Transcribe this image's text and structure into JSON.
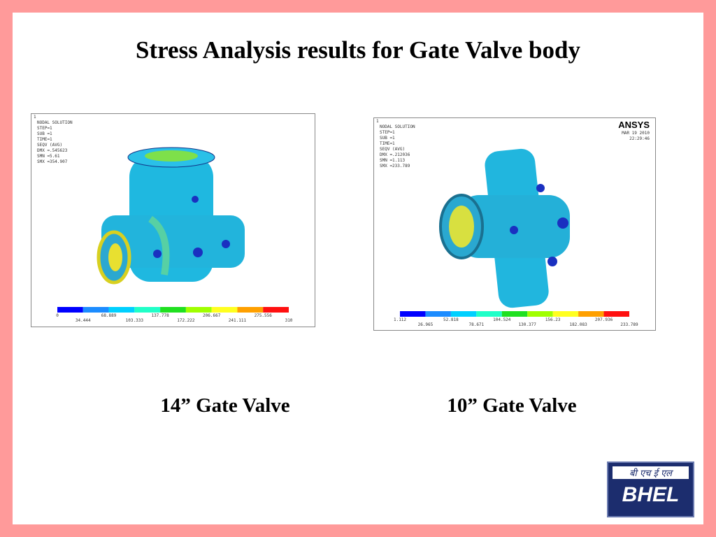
{
  "header": {
    "title": "Stress Analysis results for Gate Valve body"
  },
  "panels": [
    {
      "caption": "14” Gate Valve",
      "plot": {
        "number": "1",
        "lines": [
          "NODAL SOLUTION",
          "STEP=1",
          "SUB =1",
          "TIME=1",
          "SEQV      (AVG)",
          "DMX =.545623",
          "SMN =5.61",
          "SMX =354.907"
        ],
        "legend": [
          "0",
          "34.444",
          "68.889",
          "103.333",
          "137.778",
          "172.222",
          "206.667",
          "241.111",
          "275.556",
          "310"
        ]
      }
    },
    {
      "caption": "10” Gate Valve",
      "plot": {
        "number": "1",
        "lines": [
          "NODAL SOLUTION",
          "STEP=1",
          "SUB =1",
          "TIME=1",
          "SEQV      (AVG)",
          "DMX =.212036",
          "SMN =1.113",
          "SMX =233.789"
        ],
        "brand": "ANSYS",
        "date": "MAR 19 2010",
        "time": "22:29:46",
        "legend": [
          "1.112",
          "26.965",
          "52.818",
          "78.671",
          "104.524",
          "130.377",
          "156.23",
          "182.083",
          "207.936",
          "233.789"
        ]
      }
    }
  ],
  "logo": {
    "hindi": "बी एच ई एल",
    "text": "BHEL"
  }
}
